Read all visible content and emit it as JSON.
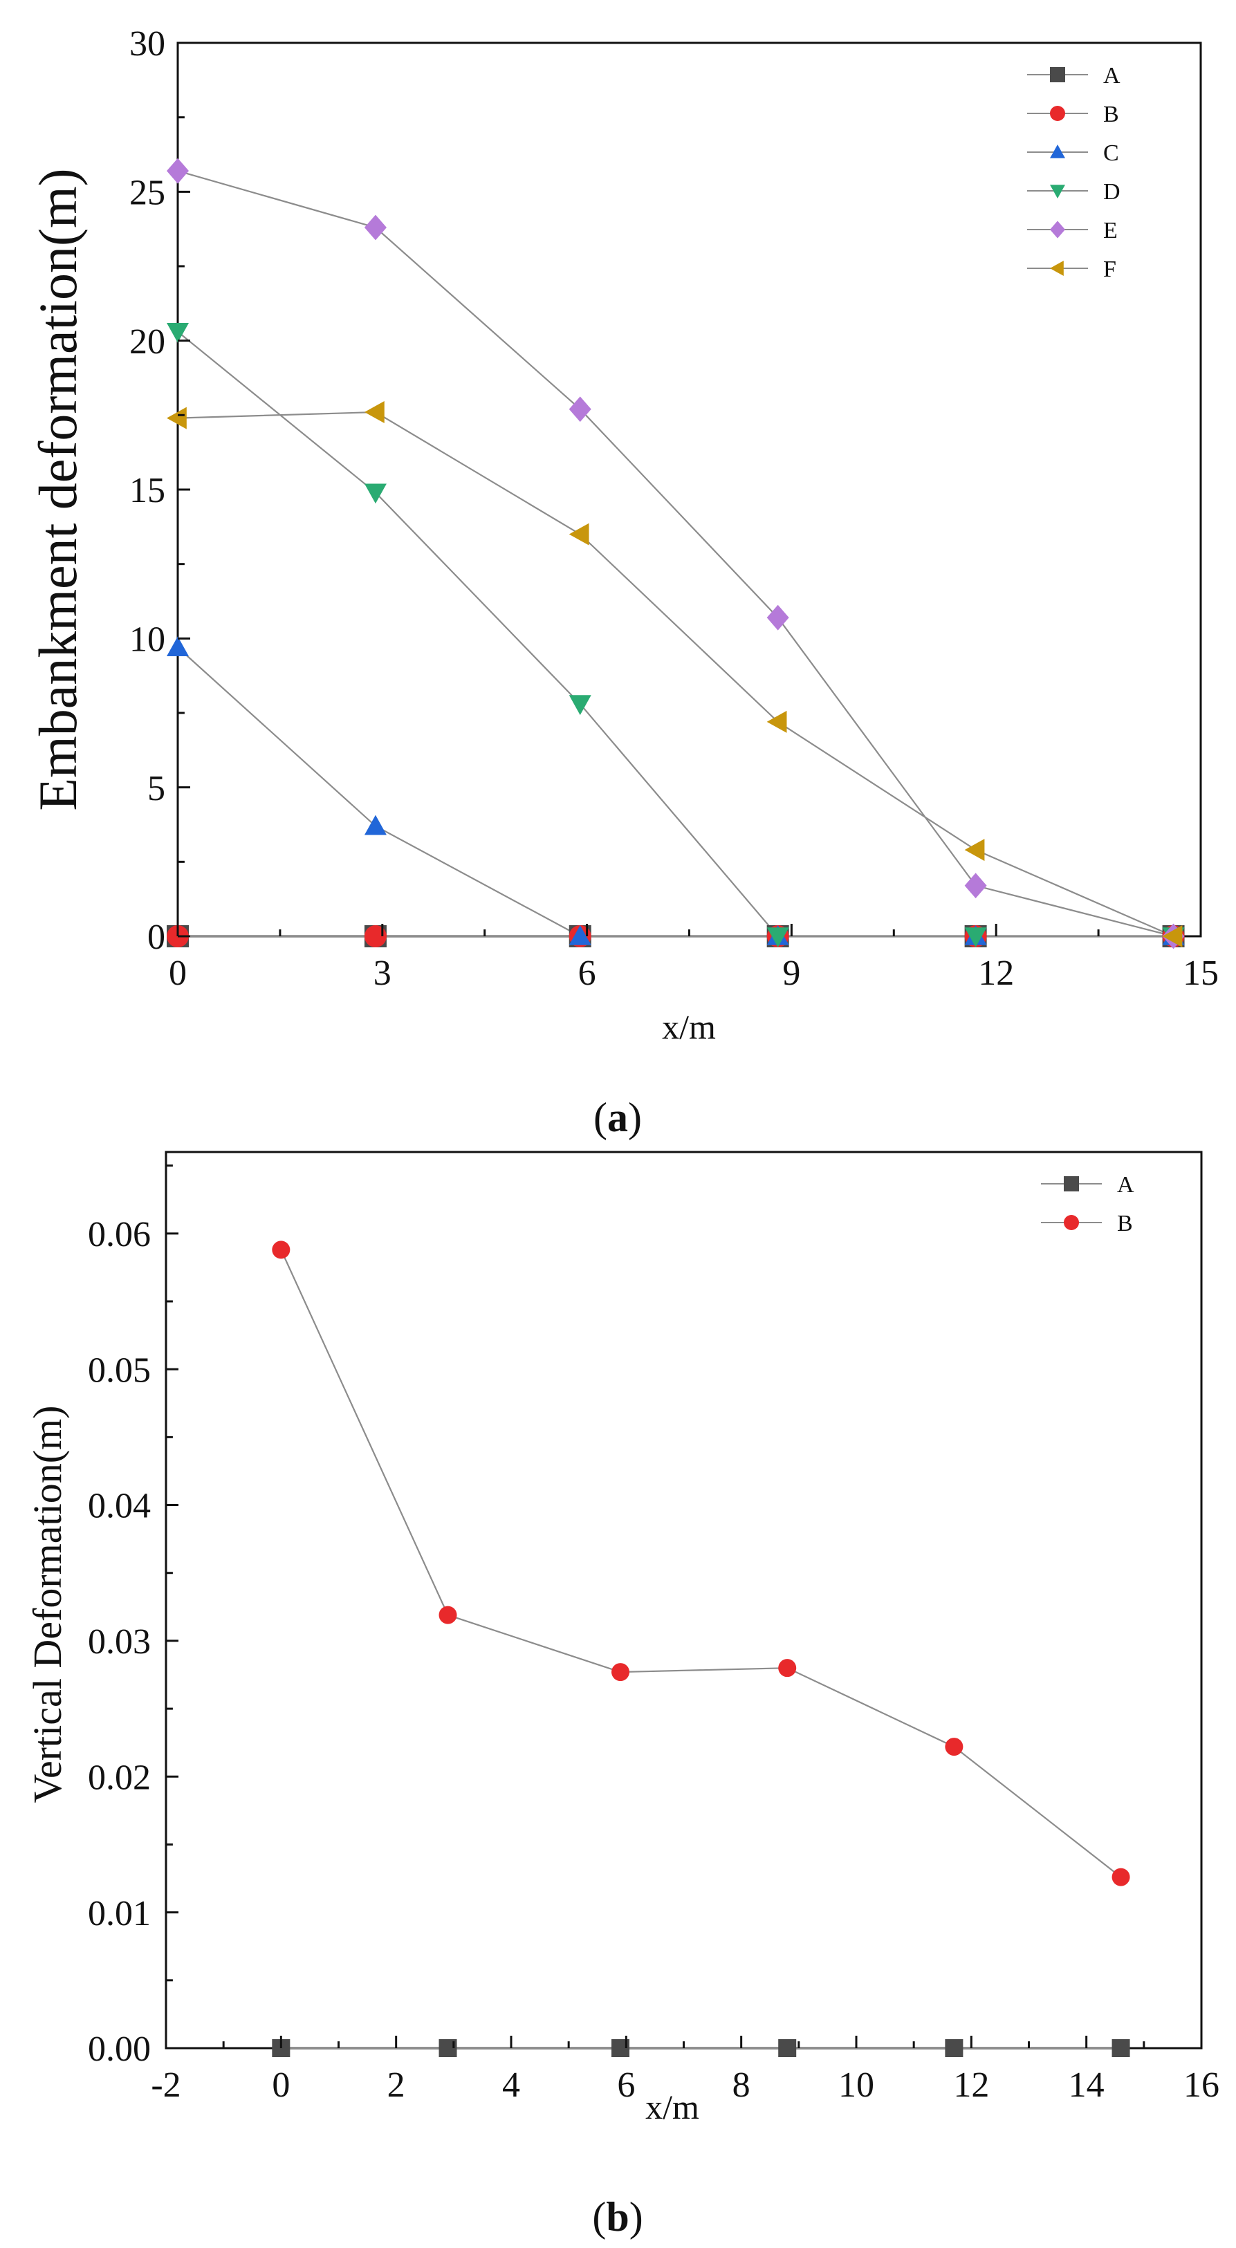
{
  "chart_data": [
    {
      "type": "line",
      "panel_label": "a",
      "title": "",
      "xlabel": "x/m",
      "ylabel": "Embankment deformation(m)",
      "xlim": [
        0,
        15
      ],
      "ylim": [
        0,
        30
      ],
      "xticks": [
        0,
        3,
        6,
        9,
        12,
        15
      ],
      "yticks": [
        0,
        5,
        10,
        15,
        20,
        25,
        30
      ],
      "x": [
        0,
        2.9,
        5.9,
        8.8,
        11.7,
        14.6
      ],
      "legend_position": "top-right",
      "series": [
        {
          "name": "A",
          "color": "#4a4a4a",
          "marker": "square",
          "values": [
            0,
            0,
            0,
            0,
            0,
            0
          ]
        },
        {
          "name": "B",
          "color": "#e8292b",
          "marker": "circle",
          "values": [
            0,
            0,
            0,
            0,
            0,
            0
          ]
        },
        {
          "name": "C",
          "color": "#2166d8",
          "marker": "triangle-up",
          "values": [
            9.7,
            3.7,
            0,
            0,
            0,
            0
          ]
        },
        {
          "name": "D",
          "color": "#2aab72",
          "marker": "triangle-down",
          "values": [
            20.3,
            14.9,
            7.8,
            0,
            0,
            0
          ]
        },
        {
          "name": "E",
          "color": "#b57ad9",
          "marker": "diamond",
          "values": [
            25.7,
            23.8,
            17.7,
            10.7,
            1.7,
            0
          ]
        },
        {
          "name": "F",
          "color": "#c8960c",
          "marker": "triangle-left",
          "values": [
            17.4,
            17.6,
            13.5,
            7.2,
            2.9,
            0
          ]
        }
      ]
    },
    {
      "type": "line",
      "panel_label": "b",
      "title": "",
      "xlabel": "x/m",
      "ylabel": "Vertical Deformation(m)",
      "xlim": [
        -2,
        16
      ],
      "ylim": [
        0,
        0.066
      ],
      "xticks": [
        -2,
        0,
        2,
        4,
        6,
        8,
        10,
        12,
        14,
        16
      ],
      "yticks": [
        0.0,
        0.01,
        0.02,
        0.03,
        0.04,
        0.05,
        0.06
      ],
      "ytick_labels": [
        "0.00",
        "0.01",
        "0.02",
        "0.03",
        "0.04",
        "0.05",
        "0.06"
      ],
      "x": [
        0,
        2.9,
        5.9,
        8.8,
        11.7,
        14.6
      ],
      "legend_position": "top-right",
      "series": [
        {
          "name": "A",
          "color": "#4a4a4a",
          "marker": "square",
          "values": [
            0,
            0,
            0,
            0,
            0,
            0
          ]
        },
        {
          "name": "B",
          "color": "#e8292b",
          "marker": "circle",
          "values": [
            0.0588,
            0.0319,
            0.0277,
            0.028,
            0.0222,
            0.0126
          ]
        }
      ]
    }
  ],
  "captions": {
    "a_open": "(",
    "a_letter": "a",
    "a_close": ")",
    "b_open": "(",
    "b_letter": "b",
    "b_close": ")"
  }
}
